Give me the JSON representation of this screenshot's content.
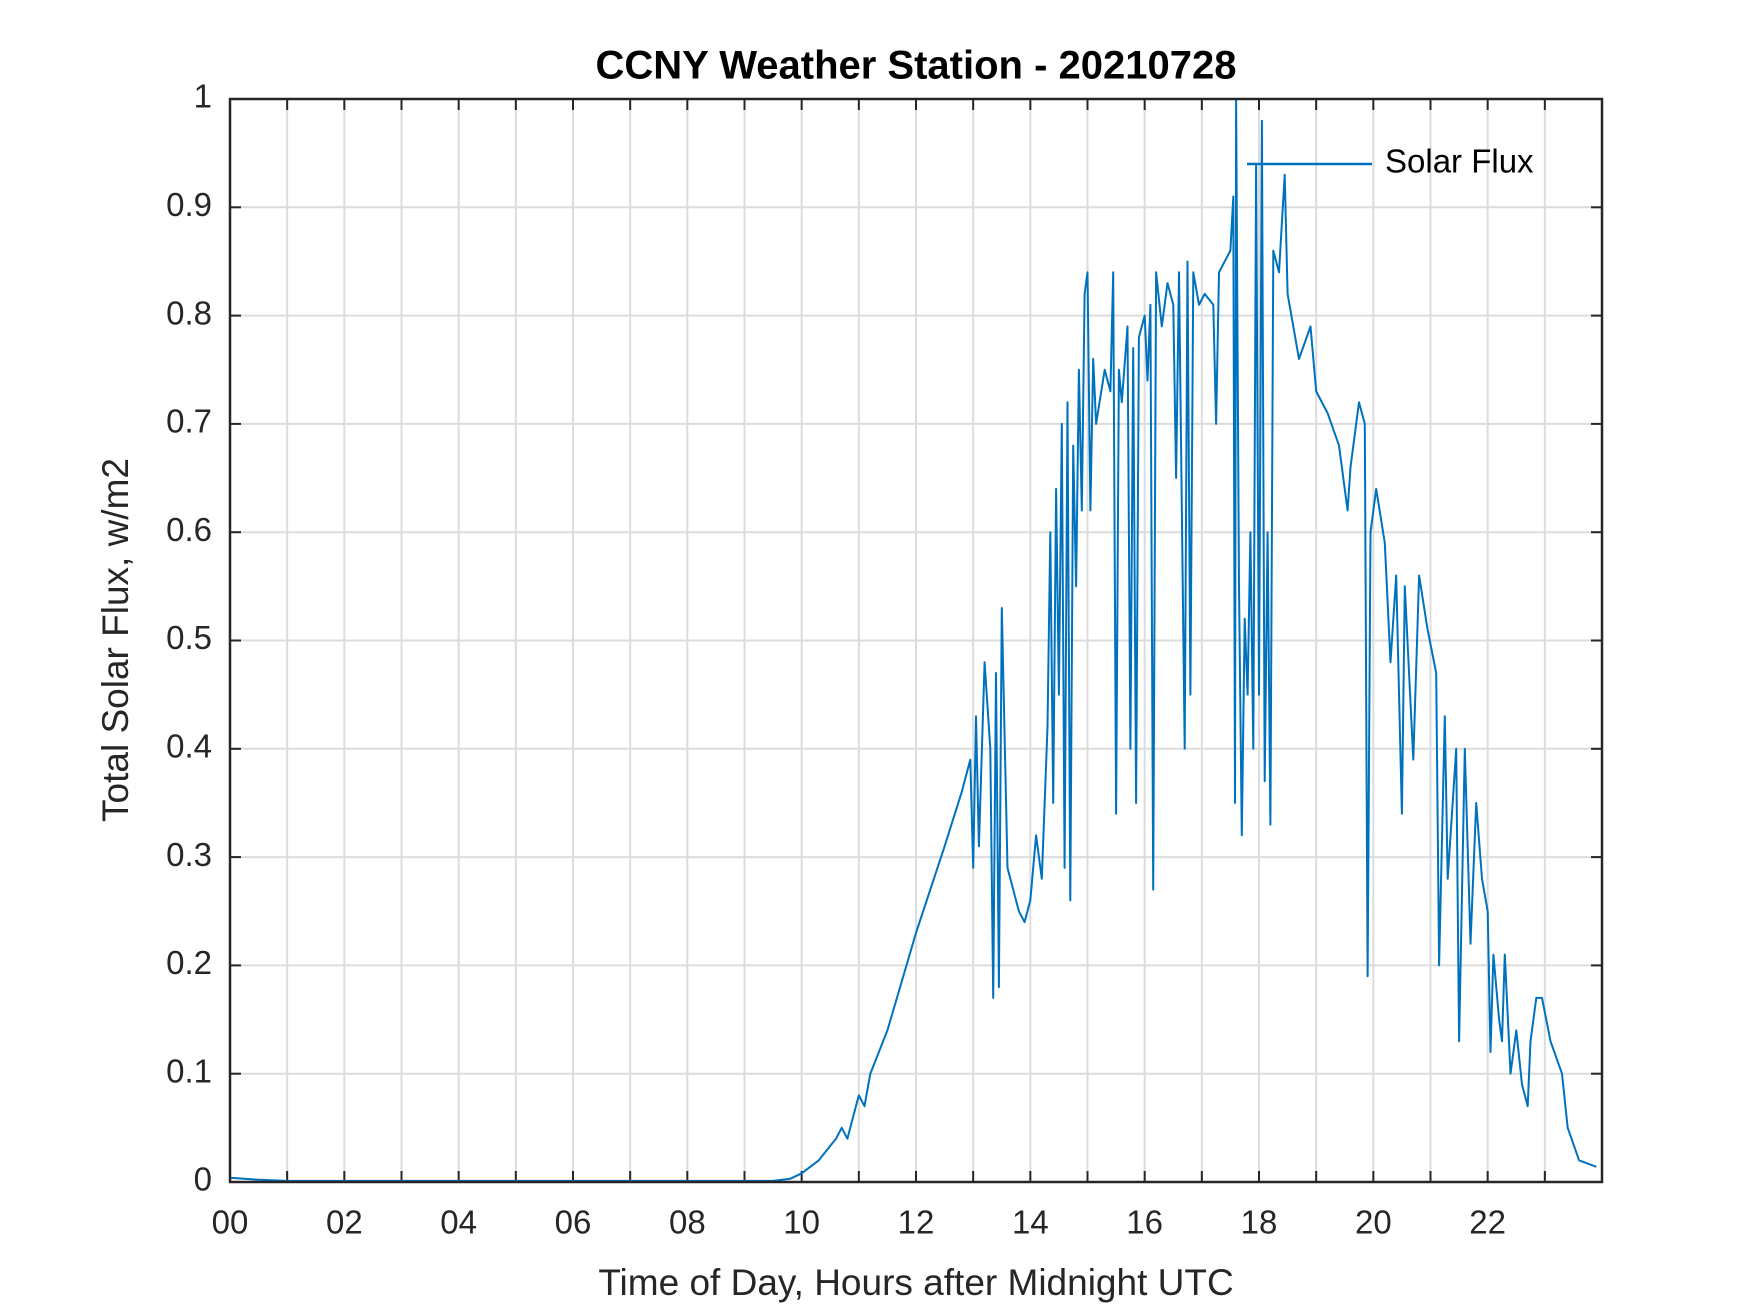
{
  "chart_data": {
    "type": "line",
    "title": "CCNY Weather Station - 20210728",
    "xlabel": "Time of Day, Hours after Midnight UTC",
    "ylabel": "Total Solar Flux, w/m2",
    "xlim": [
      0,
      24
    ],
    "ylim": [
      0,
      1
    ],
    "xticks": [
      {
        "value": 0,
        "label": "00"
      },
      {
        "value": 2,
        "label": "02"
      },
      {
        "value": 4,
        "label": "04"
      },
      {
        "value": 6,
        "label": "06"
      },
      {
        "value": 8,
        "label": "08"
      },
      10,
      12,
      14,
      16,
      18,
      20,
      22
    ],
    "minor_xticks": [
      1,
      3,
      5,
      7,
      9,
      11,
      13,
      15,
      17,
      19,
      21,
      23
    ],
    "yticks": [
      0,
      0.1,
      0.2,
      0.3,
      0.4,
      0.5,
      0.6,
      0.7,
      0.8,
      0.9,
      1
    ],
    "grid": true,
    "legend": "northeast",
    "x": [
      0,
      0.5,
      1,
      2,
      4,
      6,
      8,
      9.5,
      9.8,
      10,
      10.3,
      10.6,
      10.7,
      10.8,
      10.9,
      11.0,
      11.1,
      11.2,
      11.5,
      12,
      12.5,
      12.8,
      12.95,
      13.0,
      13.05,
      13.1,
      13.2,
      13.3,
      13.35,
      13.4,
      13.45,
      13.5,
      13.6,
      13.8,
      13.9,
      14.0,
      14.1,
      14.2,
      14.3,
      14.35,
      14.4,
      14.45,
      14.5,
      14.55,
      14.6,
      14.65,
      14.7,
      14.75,
      14.8,
      14.85,
      14.9,
      14.95,
      15.0,
      15.05,
      15.1,
      15.15,
      15.3,
      15.4,
      15.45,
      15.5,
      15.55,
      15.6,
      15.7,
      15.75,
      15.8,
      15.85,
      15.9,
      16.0,
      16.05,
      16.1,
      16.15,
      16.2,
      16.3,
      16.4,
      16.5,
      16.55,
      16.6,
      16.7,
      16.75,
      16.8,
      16.85,
      16.95,
      17.05,
      17.2,
      17.25,
      17.3,
      17.5,
      17.55,
      17.58,
      17.6,
      17.65,
      17.7,
      17.75,
      17.8,
      17.85,
      17.9,
      17.95,
      18.0,
      18.05,
      18.1,
      18.15,
      18.2,
      18.25,
      18.35,
      18.45,
      18.5,
      18.7,
      18.9,
      19.0,
      19.2,
      19.4,
      19.55,
      19.6,
      19.75,
      19.85,
      19.9,
      19.95,
      20.05,
      20.2,
      20.3,
      20.4,
      20.5,
      20.55,
      20.7,
      20.8,
      20.95,
      21.1,
      21.15,
      21.25,
      21.3,
      21.45,
      21.5,
      21.6,
      21.7,
      21.8,
      21.9,
      22.0,
      22.05,
      22.1,
      22.2,
      22.25,
      22.3,
      22.4,
      22.5,
      22.6,
      22.7,
      22.75,
      22.85,
      22.95,
      23.1,
      23.3,
      23.4,
      23.6,
      23.9
    ],
    "series": [
      {
        "name": "Solar Flux",
        "color": "#0072BD",
        "values": [
          0.004,
          0.002,
          0.001,
          0.001,
          0.001,
          0.001,
          0.001,
          0.001,
          0.003,
          0.008,
          0.02,
          0.04,
          0.05,
          0.04,
          0.06,
          0.08,
          0.07,
          0.1,
          0.14,
          0.23,
          0.31,
          0.36,
          0.39,
          0.29,
          0.43,
          0.31,
          0.48,
          0.4,
          0.17,
          0.47,
          0.18,
          0.53,
          0.29,
          0.25,
          0.24,
          0.26,
          0.32,
          0.28,
          0.42,
          0.6,
          0.35,
          0.64,
          0.45,
          0.7,
          0.29,
          0.72,
          0.26,
          0.68,
          0.55,
          0.75,
          0.62,
          0.82,
          0.84,
          0.62,
          0.76,
          0.7,
          0.75,
          0.73,
          0.84,
          0.34,
          0.75,
          0.72,
          0.79,
          0.4,
          0.77,
          0.35,
          0.78,
          0.8,
          0.74,
          0.81,
          0.27,
          0.84,
          0.79,
          0.83,
          0.81,
          0.65,
          0.84,
          0.4,
          0.85,
          0.45,
          0.84,
          0.81,
          0.82,
          0.81,
          0.7,
          0.84,
          0.86,
          0.91,
          0.35,
          1.0,
          0.55,
          0.32,
          0.52,
          0.45,
          0.6,
          0.4,
          0.94,
          0.45,
          0.98,
          0.37,
          0.6,
          0.33,
          0.86,
          0.84,
          0.93,
          0.82,
          0.76,
          0.79,
          0.73,
          0.71,
          0.68,
          0.62,
          0.66,
          0.72,
          0.7,
          0.19,
          0.6,
          0.64,
          0.59,
          0.48,
          0.56,
          0.34,
          0.55,
          0.39,
          0.56,
          0.51,
          0.47,
          0.2,
          0.43,
          0.28,
          0.4,
          0.13,
          0.4,
          0.22,
          0.35,
          0.28,
          0.25,
          0.12,
          0.21,
          0.15,
          0.13,
          0.21,
          0.1,
          0.14,
          0.09,
          0.07,
          0.13,
          0.17,
          0.17,
          0.13,
          0.1,
          0.05,
          0.02,
          0.014
        ]
      }
    ]
  }
}
